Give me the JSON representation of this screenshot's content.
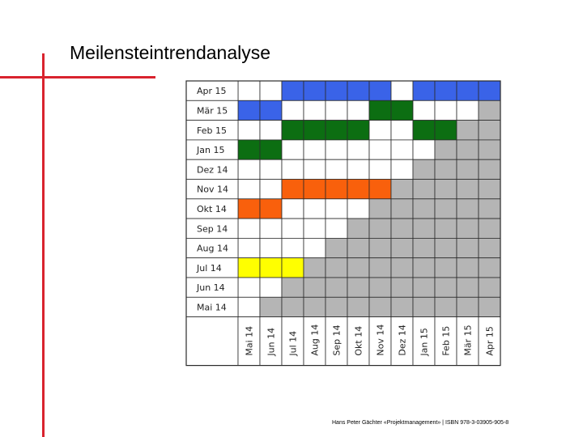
{
  "page": {
    "title": "Meilensteintrendanalyse",
    "footer": "Hans Peter Gächter «Projektmanagement» | ISBN 978-3-03905-905-8"
  },
  "colors": {
    "accent_line": "#d9232e",
    "grid": "#2b2b2b",
    "inactive": "#b5b5b5",
    "blank": "#ffffff"
  },
  "chart_data": {
    "type": "table",
    "rows": [
      "Apr 15",
      "Mär 15",
      "Feb 15",
      "Jan 15",
      "Dez 14",
      "Nov 14",
      "Okt 14",
      "Sep 14",
      "Aug 14",
      "Jul 14",
      "Jun 14",
      "Mai 14"
    ],
    "columns": [
      "Mai 14",
      "Jun 14",
      "Jul 14",
      "Aug 14",
      "Sep 14",
      "Okt 14",
      "Nov 14",
      "Dez 14",
      "Jan 15",
      "Feb 15",
      "Mär 15",
      "Apr 15"
    ],
    "cells": [
      [
        "",
        "",
        "blue",
        "blue",
        "blue",
        "blue",
        "blue",
        "",
        "blue",
        "blue",
        "blue",
        "blue"
      ],
      [
        "blue",
        "blue",
        "",
        "",
        "",
        "",
        "green",
        "green",
        "",
        "",
        "",
        "grey"
      ],
      [
        "",
        "",
        "green",
        "green",
        "green",
        "green",
        "",
        "",
        "green",
        "green",
        "grey",
        "grey"
      ],
      [
        "green",
        "green",
        "",
        "",
        "",
        "",
        "",
        "",
        "",
        "grey",
        "grey",
        "grey"
      ],
      [
        "",
        "",
        "",
        "",
        "",
        "",
        "",
        "",
        "grey",
        "grey",
        "grey",
        "grey"
      ],
      [
        "",
        "",
        "orange",
        "orange",
        "orange",
        "orange",
        "orange",
        "grey",
        "grey",
        "grey",
        "grey",
        "grey"
      ],
      [
        "orange",
        "orange",
        "",
        "",
        "",
        "",
        "grey",
        "grey",
        "grey",
        "grey",
        "grey",
        "grey"
      ],
      [
        "",
        "",
        "",
        "",
        "",
        "grey",
        "grey",
        "grey",
        "grey",
        "grey",
        "grey",
        "grey"
      ],
      [
        "",
        "",
        "",
        "",
        "grey",
        "grey",
        "grey",
        "grey",
        "grey",
        "grey",
        "grey",
        "grey"
      ],
      [
        "yellow",
        "yellow",
        "yellow",
        "grey",
        "grey",
        "grey",
        "grey",
        "grey",
        "grey",
        "grey",
        "grey",
        "grey"
      ],
      [
        "",
        "",
        "grey",
        "grey",
        "grey",
        "grey",
        "grey",
        "grey",
        "grey",
        "grey",
        "grey",
        "grey"
      ],
      [
        "",
        "grey",
        "grey",
        "grey",
        "grey",
        "grey",
        "grey",
        "grey",
        "grey",
        "grey",
        "grey",
        "grey"
      ]
    ],
    "palette": {
      "blue": "#3a63e8",
      "green": "#0c6e12",
      "orange": "#f9600c",
      "yellow": "#ffff00",
      "grey": "#b5b5b5"
    }
  }
}
